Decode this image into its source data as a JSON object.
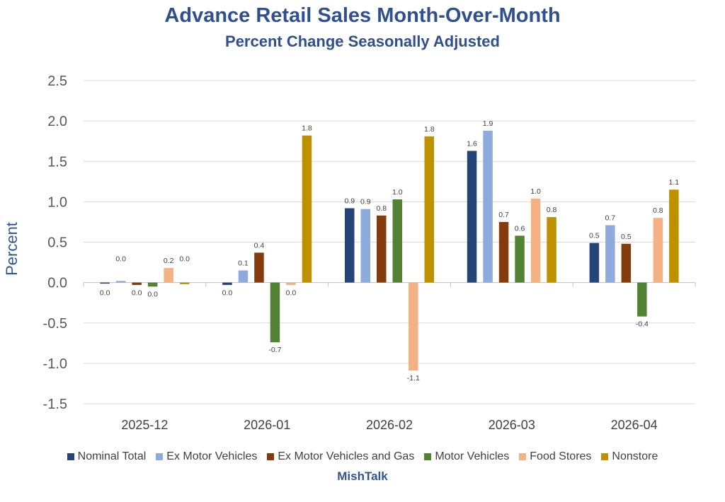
{
  "chart_data": {
    "type": "bar",
    "title": "Advance Retail Sales Month-Over-Month",
    "subtitle": "Percent Change Seasonally Adjusted",
    "ylabel": "Percent",
    "xlabel": "",
    "ylim": [
      -1.5,
      2.5
    ],
    "yticks": [
      "2.5",
      "2.0",
      "1.5",
      "1.0",
      "0.5",
      "0.0",
      "-0.5",
      "-1.0",
      "-1.5"
    ],
    "grid": true,
    "legend_position": "bottom",
    "categories": [
      "2025-12",
      "2026-01",
      "2026-02",
      "2026-03",
      "2026-04"
    ],
    "series": [
      {
        "name": "Nominal Total",
        "color": "#264478",
        "values": [
          0.0,
          -0.03,
          0.92,
          1.63,
          0.49
        ],
        "labels": [
          "0.0",
          "0.0",
          "0.9",
          "1.6",
          "0.5"
        ]
      },
      {
        "name": "Ex Motor Vehicles",
        "color": "#8FAADC",
        "values": [
          0.02,
          0.15,
          0.91,
          1.88,
          0.71
        ],
        "labels": [
          "0.0",
          "0.1",
          "0.9",
          "1.9",
          "0.7"
        ]
      },
      {
        "name": "Ex Motor Vehicles and Gas",
        "color": "#843C0C",
        "values": [
          -0.03,
          0.37,
          0.83,
          0.75,
          0.48
        ],
        "labels": [
          "0.0",
          "0.4",
          "0.8",
          "0.7",
          "0.5"
        ]
      },
      {
        "name": "Motor Vehicles",
        "color": "#548235",
        "values": [
          -0.05,
          -0.74,
          1.03,
          0.58,
          -0.42
        ],
        "labels": [
          "0.0",
          "-0.7",
          "1.0",
          "0.6",
          "-0.4"
        ]
      },
      {
        "name": "Food Stores",
        "color": "#F4B183",
        "values": [
          0.18,
          -0.03,
          -1.09,
          1.04,
          0.8
        ],
        "labels": [
          "0.2",
          "0.0",
          "-1.1",
          "1.0",
          "0.8"
        ]
      },
      {
        "name": "Nonstore",
        "color": "#BF9000",
        "values": [
          -0.02,
          1.82,
          1.81,
          0.81,
          1.15
        ],
        "labels": [
          "0.0",
          "1.8",
          "1.8",
          "0.8",
          "1.1"
        ]
      }
    ],
    "source": "MishTalk"
  }
}
